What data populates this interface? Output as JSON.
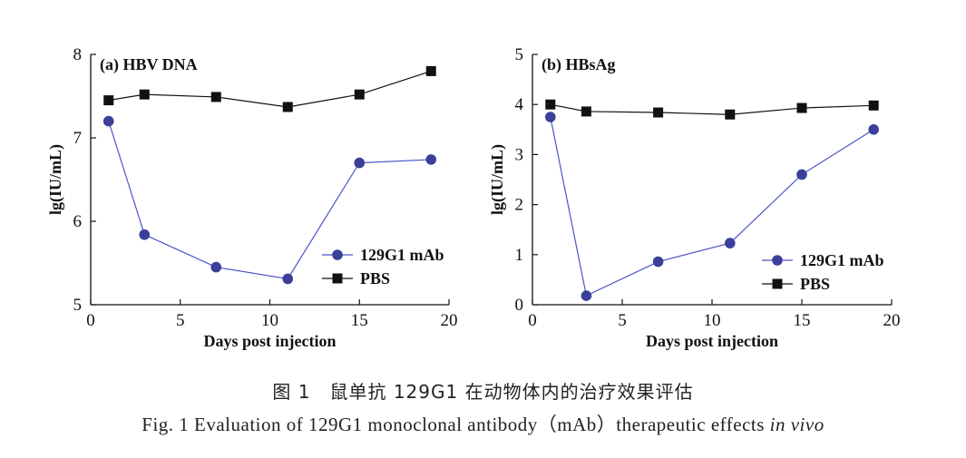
{
  "chart_data": [
    {
      "type": "line",
      "title": "(a) HBV DNA",
      "xlabel": "Days post injection",
      "ylabel": "lg(IU/mL)",
      "xlim": [
        0,
        20
      ],
      "ylim": [
        5,
        8
      ],
      "xticks": [
        0,
        5,
        10,
        15,
        20
      ],
      "yticks": [
        5,
        6,
        7,
        8
      ],
      "legend_position": "lower-right",
      "grid": false,
      "series": [
        {
          "name": "129G1 mAb",
          "marker": "circle",
          "color": "#3b3f9a",
          "x": [
            1,
            3,
            7,
            11,
            15,
            19
          ],
          "y": [
            7.2,
            5.84,
            5.45,
            5.31,
            6.7,
            6.74
          ]
        },
        {
          "name": "PBS",
          "marker": "square",
          "color": "#111111",
          "x": [
            1,
            3,
            7,
            11,
            15,
            19
          ],
          "y": [
            7.45,
            7.52,
            7.49,
            7.37,
            7.52,
            7.8
          ]
        }
      ]
    },
    {
      "type": "line",
      "title": "(b) HBsAg",
      "xlabel": "Days post injection",
      "ylabel": "lg(IU/mL)",
      "xlim": [
        0,
        20
      ],
      "ylim": [
        0,
        5
      ],
      "xticks": [
        0,
        5,
        10,
        15,
        20
      ],
      "yticks": [
        0,
        1,
        2,
        3,
        4,
        5
      ],
      "legend_position": "lower-right",
      "grid": false,
      "series": [
        {
          "name": "129G1 mAb",
          "marker": "circle",
          "color": "#3b3f9a",
          "x": [
            1,
            3,
            7,
            11,
            15,
            19
          ],
          "y": [
            3.75,
            0.18,
            0.86,
            1.23,
            2.6,
            3.5
          ]
        },
        {
          "name": "PBS",
          "marker": "square",
          "color": "#111111",
          "x": [
            1,
            3,
            7,
            11,
            15,
            19
          ],
          "y": [
            4.0,
            3.86,
            3.84,
            3.8,
            3.93,
            3.98
          ]
        }
      ]
    }
  ],
  "caption": {
    "chinese": "图 1　鼠单抗 129G1 在动物体内的治疗效果评估",
    "english_main": "Fig. 1   Evaluation of 129G1 monoclonal antibody（mAb）therapeutic effects ",
    "english_italic": "in vivo"
  }
}
